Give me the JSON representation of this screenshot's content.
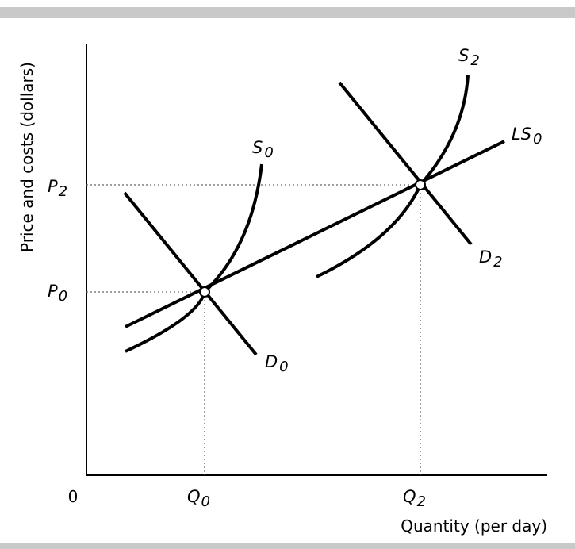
{
  "chart_data": {
    "type": "line",
    "xlabel": "Quantity (per day)",
    "ylabel": "Price and costs (dollars)",
    "origin_label": "0",
    "x_ticks": [
      {
        "base": "Q",
        "sub": "0"
      },
      {
        "base": "Q",
        "sub": "2"
      }
    ],
    "y_ticks": [
      {
        "base": "P",
        "sub": "0"
      },
      {
        "base": "P",
        "sub": "2"
      }
    ],
    "series": [
      {
        "name": "LS0",
        "label_base": "LS",
        "label_sub": "0"
      },
      {
        "name": "S0",
        "label_base": "S",
        "label_sub": "0"
      },
      {
        "name": "D0",
        "label_base": "D",
        "label_sub": "0"
      },
      {
        "name": "S2",
        "label_base": "S",
        "label_sub": "2"
      },
      {
        "name": "D2",
        "label_base": "D",
        "label_sub": "2"
      }
    ],
    "equilibria": [
      {
        "x_label": "Q0",
        "y_label": "P0"
      },
      {
        "x_label": "Q2",
        "y_label": "P2"
      }
    ],
    "grid": false,
    "legend": "none"
  },
  "colors": {
    "line": "#000000",
    "band": "#c9c9c9",
    "guide": "#666666"
  }
}
